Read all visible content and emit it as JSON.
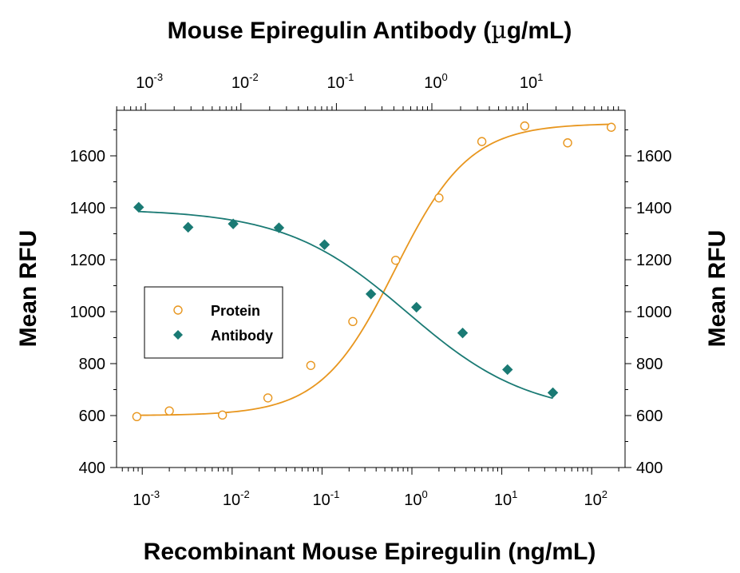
{
  "chart_data": {
    "type": "scatter",
    "top_axis_title_prefix": "Mouse Epiregulin Antibody (",
    "top_axis_title_mu": "µ",
    "top_axis_title_suffix": "g/mL)",
    "xlabel": "Recombinant Mouse Epiregulin (ng/mL)",
    "ylabel_left": "Mean RFU",
    "ylabel_right": "Mean RFU",
    "x_scale": "log",
    "y_range": [
      400,
      1800
    ],
    "y_ticks": [
      "400",
      "600",
      "800",
      "1000",
      "1200",
      "1400",
      "1600"
    ],
    "bottom_ticks": [
      {
        "base": "10",
        "exp": "-3"
      },
      {
        "base": "10",
        "exp": "-2"
      },
      {
        "base": "10",
        "exp": "-1"
      },
      {
        "base": "10",
        "exp": "0"
      },
      {
        "base": "10",
        "exp": "1"
      },
      {
        "base": "10",
        "exp": "2"
      }
    ],
    "top_ticks": [
      {
        "base": "10",
        "exp": "-3"
      },
      {
        "base": "10",
        "exp": "-2"
      },
      {
        "base": "10",
        "exp": "-1"
      },
      {
        "base": "10",
        "exp": "0"
      },
      {
        "base": "10",
        "exp": "1"
      }
    ],
    "legend_placement": "center-left",
    "series": [
      {
        "name": "Protein",
        "axis": "bottom",
        "marker": "open-circle",
        "color": "#e8961e",
        "x": [
          0.00087,
          0.002,
          0.0078,
          0.025,
          0.075,
          0.22,
          0.66,
          2.0,
          6.0,
          18,
          54,
          165
        ],
        "y": [
          596,
          618,
          602,
          668,
          793,
          962,
          1198,
          1438,
          1655,
          1715,
          1650,
          1710
        ]
      },
      {
        "name": "Antibody",
        "axis": "top",
        "marker": "filled-diamond",
        "color": "#1a7a74",
        "x": [
          0.00085,
          0.0028,
          0.0083,
          0.025,
          0.075,
          0.23,
          0.69,
          2.1,
          6.2,
          18.5
        ],
        "y": [
          1402,
          1325,
          1338,
          1323,
          1258,
          1068,
          1017,
          918,
          777,
          688
        ]
      }
    ]
  }
}
